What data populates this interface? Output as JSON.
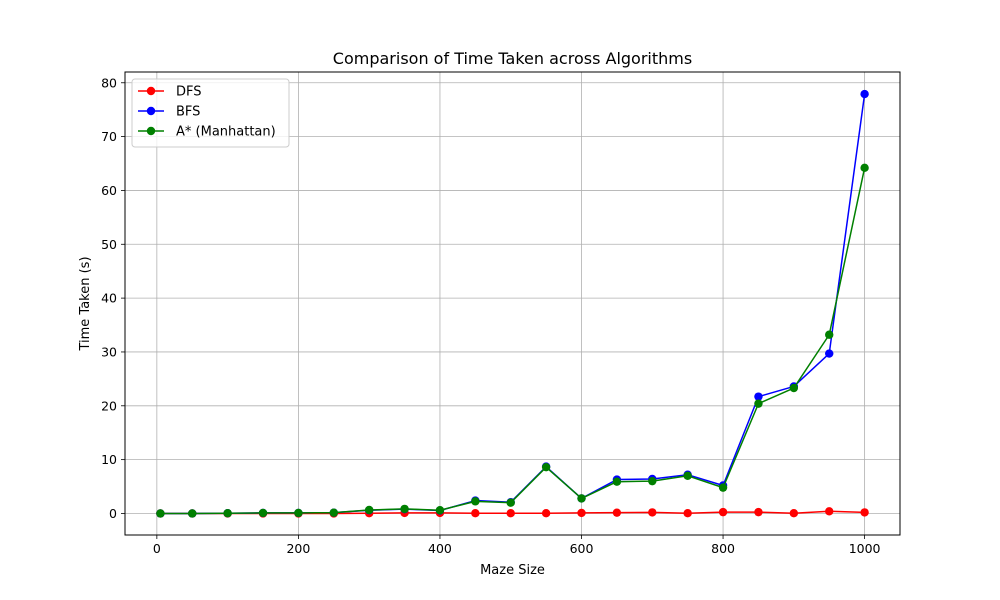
{
  "chart_data": {
    "type": "line",
    "title": "Comparison of Time Taken across Algorithms",
    "xlabel": "Maze Size",
    "ylabel": "Time Taken (s)",
    "xlim": [
      -45,
      1050
    ],
    "ylim": [
      -4,
      82
    ],
    "xticks": [
      0,
      200,
      400,
      600,
      800,
      1000
    ],
    "yticks": [
      0,
      10,
      20,
      30,
      40,
      50,
      60,
      70,
      80
    ],
    "grid": true,
    "legend_position": "top-left",
    "x": [
      5,
      50,
      100,
      150,
      200,
      250,
      300,
      350,
      400,
      450,
      500,
      550,
      600,
      650,
      700,
      750,
      800,
      850,
      900,
      950,
      1000
    ],
    "series": [
      {
        "name": "DFS",
        "color": "#ff0000",
        "marker": "circle",
        "values": [
          0.0,
          0.0,
          0.0,
          0.0,
          0.0,
          0.0,
          0.05,
          0.1,
          0.1,
          0.05,
          0.05,
          0.05,
          0.1,
          0.15,
          0.2,
          0.05,
          0.25,
          0.25,
          0.05,
          0.4,
          0.2
        ]
      },
      {
        "name": "BFS",
        "color": "#0000ff",
        "marker": "circle",
        "values": [
          0.0,
          0.0,
          0.05,
          0.1,
          0.1,
          0.15,
          0.6,
          0.8,
          0.55,
          2.4,
          2.1,
          8.7,
          2.8,
          6.3,
          6.4,
          7.2,
          5.2,
          21.7,
          23.6,
          29.7,
          77.9
        ]
      },
      {
        "name": "A* (Manhattan)",
        "color": "#008000",
        "marker": "circle",
        "values": [
          0.0,
          0.0,
          0.05,
          0.1,
          0.1,
          0.15,
          0.65,
          0.85,
          0.6,
          2.25,
          2.0,
          8.6,
          2.8,
          5.9,
          6.0,
          7.0,
          4.8,
          20.4,
          23.3,
          33.2,
          64.2
        ]
      }
    ]
  }
}
